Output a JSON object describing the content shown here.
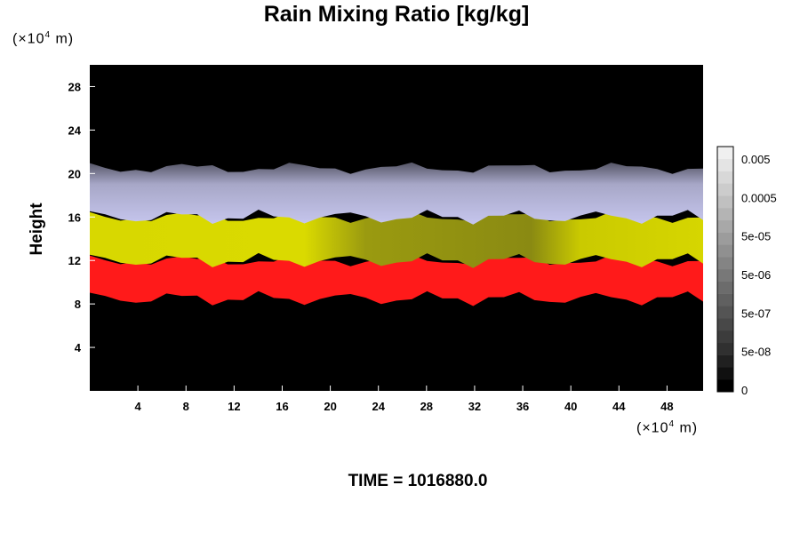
{
  "chart_data": {
    "type": "heatmap",
    "title": "Rain Mixing Ratio [kg/kg]",
    "ylabel": "Height",
    "unit_y": {
      "prefix": "(×10",
      "exp": "4",
      "suffix": " m)"
    },
    "unit_x": {
      "prefix": "(×10",
      "exp": "4",
      "suffix": " m)"
    },
    "xlim": [
      0,
      51
    ],
    "ylim": [
      0,
      30
    ],
    "x_ticks": [
      4,
      8,
      12,
      16,
      20,
      24,
      28,
      32,
      36,
      40,
      44,
      48
    ],
    "y_ticks": [
      4,
      8,
      12,
      16,
      20,
      24,
      28
    ],
    "layers": [
      {
        "band": "red",
        "y_range": [
          8.5,
          12
        ],
        "color": "#ff1a1a"
      },
      {
        "band": "yellow",
        "y_range": [
          12,
          16
        ],
        "color": "#d6d600"
      },
      {
        "band": "lavender",
        "y_range": [
          16,
          20.5
        ],
        "color": "#c0c0e8"
      }
    ],
    "colorbar": {
      "ticks": [
        "0.005",
        "0.0005",
        "5e-05",
        "5e-06",
        "5e-07",
        "5e-08",
        "0"
      ],
      "colors": [
        "#000000",
        "#101010",
        "#202020",
        "#303030",
        "#3c3c3c",
        "#484848",
        "#545454",
        "#606060",
        "#6c6c6c",
        "#787878",
        "#848484",
        "#909090",
        "#9c9c9c",
        "#a8a8a8",
        "#b4b4b4",
        "#c0c0c0",
        "#cccccc",
        "#d8d8d8",
        "#e4e4e4",
        "#f0f0f0"
      ]
    },
    "legend": "right"
  },
  "footer": {
    "time": "TIME = 1016880.0"
  }
}
